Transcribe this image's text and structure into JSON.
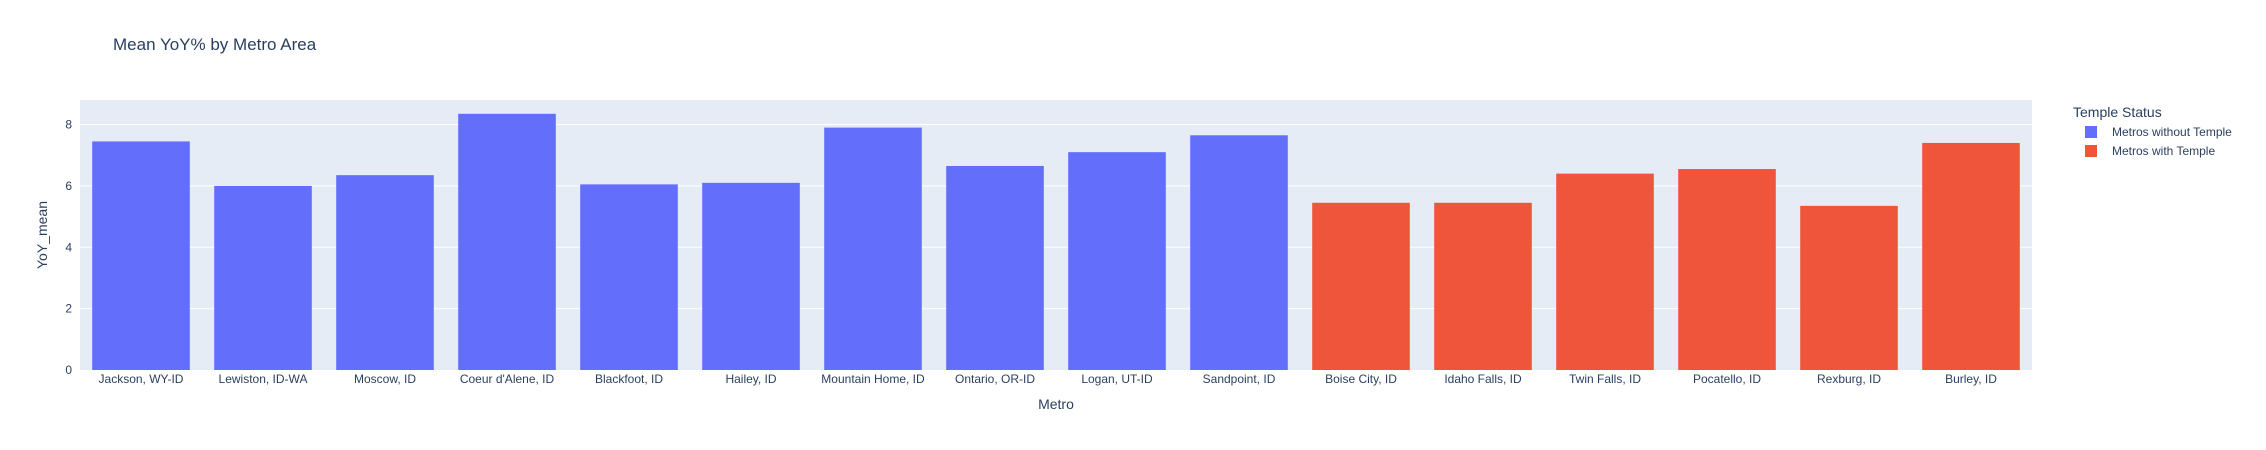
{
  "chart_data": {
    "type": "bar",
    "title": "Mean YoY% by Metro Area",
    "xlabel": "Metro",
    "ylabel": "YoY_mean",
    "ylim": [
      0,
      8.8
    ],
    "yticks": [
      0,
      2,
      4,
      6,
      8
    ],
    "grid": true,
    "legend_placement": "top-right",
    "legend_title": "Temple Status",
    "series": [
      {
        "name": "Metros without Temple",
        "color": "#636efa",
        "categories": [
          "Jackson, WY-ID",
          "Lewiston, ID-WA",
          "Moscow, ID",
          "Coeur d'Alene, ID",
          "Blackfoot, ID",
          "Hailey, ID",
          "Mountain Home, ID",
          "Ontario, OR-ID",
          "Logan, UT-ID",
          "Sandpoint, ID"
        ],
        "values": [
          7.45,
          6.0,
          6.35,
          8.35,
          6.05,
          6.1,
          7.9,
          6.65,
          7.1,
          7.65
        ]
      },
      {
        "name": "Metros with Temple",
        "color": "#ef553b",
        "categories": [
          "Boise City, ID",
          "Idaho Falls, ID",
          "Twin Falls, ID",
          "Pocatello, ID",
          "Rexburg, ID",
          "Burley, ID"
        ],
        "values": [
          5.45,
          5.45,
          6.4,
          6.55,
          5.35,
          7.4
        ]
      }
    ]
  }
}
